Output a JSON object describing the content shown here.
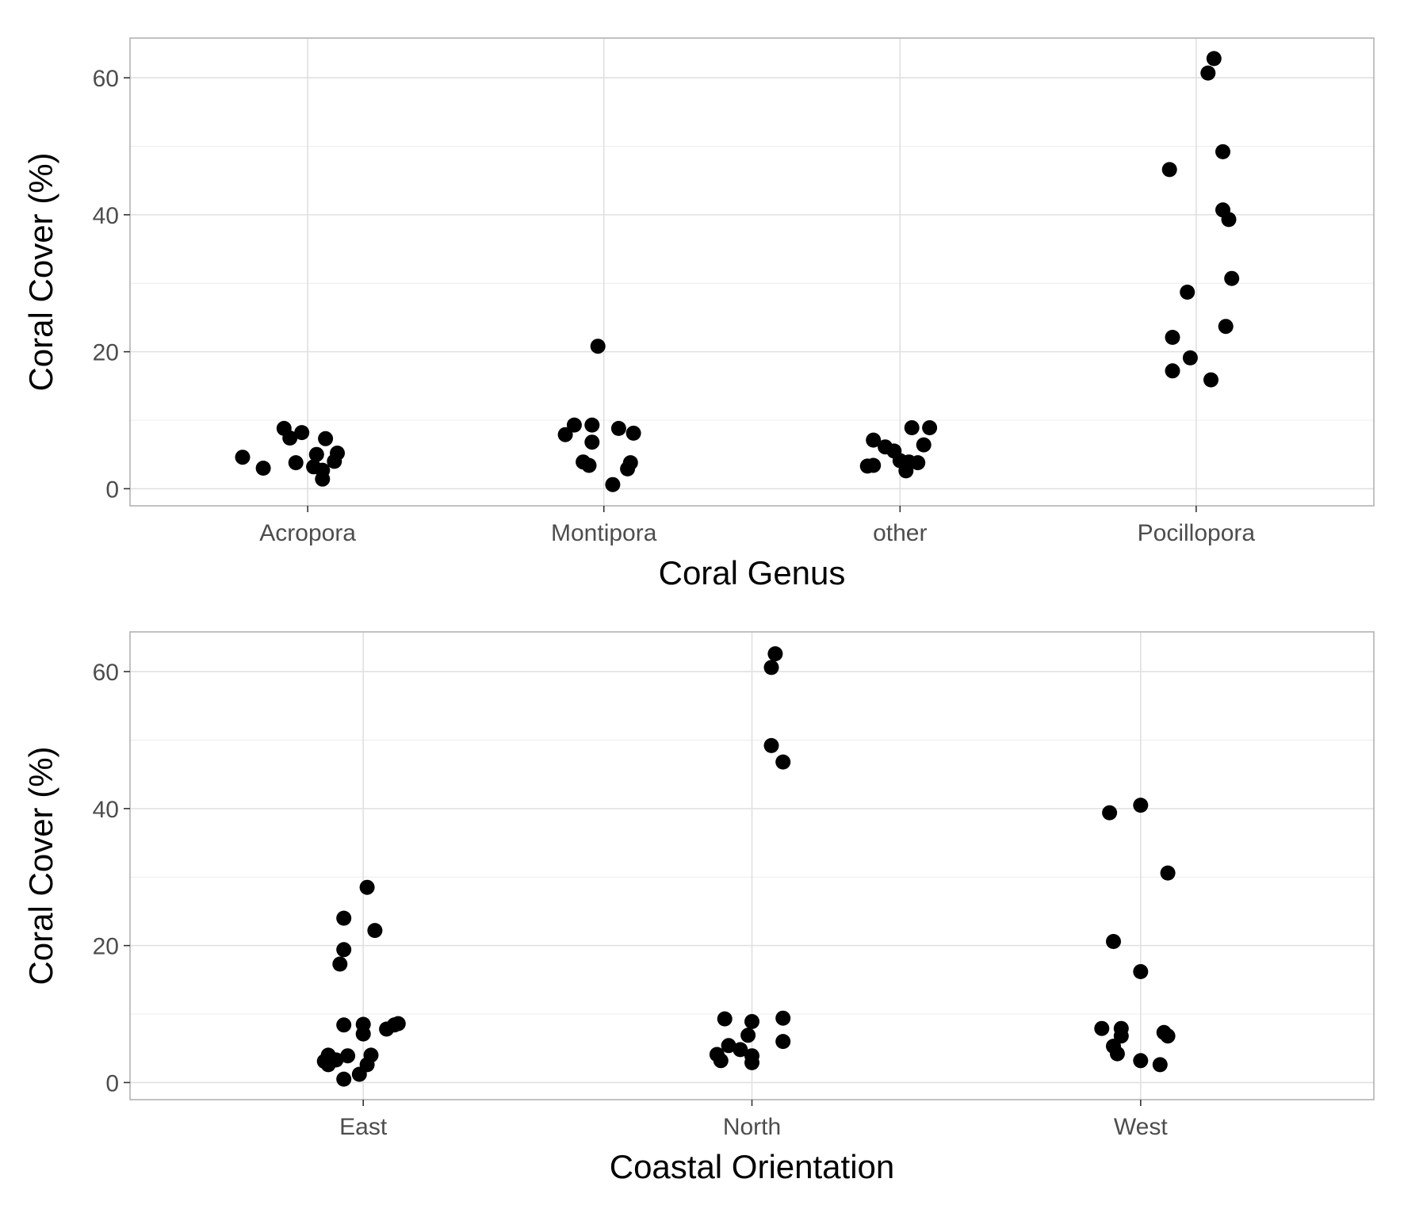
{
  "chart_data": [
    {
      "type": "scatter",
      "title": "",
      "xlabel": "Coral Genus",
      "ylabel": "Coral Cover (%)",
      "categories": [
        "Acropora",
        "Montipora",
        "other",
        "Pocillopora"
      ],
      "y_ticks": [
        0,
        20,
        40,
        60
      ],
      "y_tick_labels": [
        "0",
        "20",
        "40",
        "60"
      ],
      "ylim": [
        -2.5,
        65.8
      ],
      "grid": true,
      "point_color": "#000000",
      "series": [
        {
          "name": "Acropora",
          "points": [
            {
              "x": "Acropora",
              "jitter": -0.08,
              "y": 8.8
            },
            {
              "x": "Acropora",
              "jitter": -0.02,
              "y": 8.2
            },
            {
              "x": "Acropora",
              "jitter": 0.06,
              "y": 7.3
            },
            {
              "x": "Acropora",
              "jitter": -0.22,
              "y": 4.6
            },
            {
              "x": "Acropora",
              "jitter": -0.06,
              "y": 7.4
            },
            {
              "x": "Acropora",
              "jitter": 0.1,
              "y": 5.2
            },
            {
              "x": "Acropora",
              "jitter": 0.03,
              "y": 5.0
            },
            {
              "x": "Acropora",
              "jitter": -0.04,
              "y": 3.8
            },
            {
              "x": "Acropora",
              "jitter": -0.15,
              "y": 3.0
            },
            {
              "x": "Acropora",
              "jitter": 0.02,
              "y": 3.2
            },
            {
              "x": "Acropora",
              "jitter": 0.09,
              "y": 4.0
            },
            {
              "x": "Acropora",
              "jitter": 0.05,
              "y": 2.7
            },
            {
              "x": "Acropora",
              "jitter": 0.05,
              "y": 1.4
            }
          ]
        },
        {
          "name": "Montipora",
          "points": [
            {
              "x": "Montipora",
              "jitter": -0.02,
              "y": 20.8
            },
            {
              "x": "Montipora",
              "jitter": -0.1,
              "y": 9.3
            },
            {
              "x": "Montipora",
              "jitter": -0.04,
              "y": 9.3
            },
            {
              "x": "Montipora",
              "jitter": 0.05,
              "y": 8.8
            },
            {
              "x": "Montipora",
              "jitter": -0.13,
              "y": 7.9
            },
            {
              "x": "Montipora",
              "jitter": 0.1,
              "y": 8.1
            },
            {
              "x": "Montipora",
              "jitter": -0.04,
              "y": 6.8
            },
            {
              "x": "Montipora",
              "jitter": -0.07,
              "y": 3.9
            },
            {
              "x": "Montipora",
              "jitter": -0.05,
              "y": 3.4
            },
            {
              "x": "Montipora",
              "jitter": 0.09,
              "y": 3.8
            },
            {
              "x": "Montipora",
              "jitter": 0.08,
              "y": 2.9
            },
            {
              "x": "Montipora",
              "jitter": 0.03,
              "y": 0.6
            }
          ]
        },
        {
          "name": "other",
          "points": [
            {
              "x": "other",
              "jitter": 0.04,
              "y": 8.9
            },
            {
              "x": "other",
              "jitter": 0.1,
              "y": 8.9
            },
            {
              "x": "other",
              "jitter": -0.09,
              "y": 7.1
            },
            {
              "x": "other",
              "jitter": -0.05,
              "y": 6.1
            },
            {
              "x": "other",
              "jitter": -0.02,
              "y": 5.5
            },
            {
              "x": "other",
              "jitter": 0.08,
              "y": 6.4
            },
            {
              "x": "other",
              "jitter": 0.0,
              "y": 4.1
            },
            {
              "x": "other",
              "jitter": 0.06,
              "y": 3.8
            },
            {
              "x": "other",
              "jitter": -0.11,
              "y": 3.3
            },
            {
              "x": "other",
              "jitter": -0.09,
              "y": 3.4
            },
            {
              "x": "other",
              "jitter": 0.02,
              "y": 2.6
            },
            {
              "x": "other",
              "jitter": 0.03,
              "y": 3.9
            }
          ]
        },
        {
          "name": "Pocillopora",
          "points": [
            {
              "x": "Pocillopora",
              "jitter": 0.06,
              "y": 62.8
            },
            {
              "x": "Pocillopora",
              "jitter": 0.04,
              "y": 60.7
            },
            {
              "x": "Pocillopora",
              "jitter": 0.09,
              "y": 49.2
            },
            {
              "x": "Pocillopora",
              "jitter": -0.09,
              "y": 46.6
            },
            {
              "x": "Pocillopora",
              "jitter": 0.09,
              "y": 40.7
            },
            {
              "x": "Pocillopora",
              "jitter": 0.11,
              "y": 39.3
            },
            {
              "x": "Pocillopora",
              "jitter": 0.12,
              "y": 30.7
            },
            {
              "x": "Pocillopora",
              "jitter": -0.03,
              "y": 28.7
            },
            {
              "x": "Pocillopora",
              "jitter": 0.1,
              "y": 23.7
            },
            {
              "x": "Pocillopora",
              "jitter": -0.08,
              "y": 22.1
            },
            {
              "x": "Pocillopora",
              "jitter": -0.02,
              "y": 19.1
            },
            {
              "x": "Pocillopora",
              "jitter": -0.08,
              "y": 17.2
            },
            {
              "x": "Pocillopora",
              "jitter": 0.05,
              "y": 15.9
            }
          ]
        }
      ]
    },
    {
      "type": "scatter",
      "title": "",
      "xlabel": "Coastal Orientation",
      "ylabel": "Coral Cover (%)",
      "categories": [
        "East",
        "North",
        "West"
      ],
      "y_ticks": [
        0,
        20,
        40,
        60
      ],
      "y_tick_labels": [
        "0",
        "20",
        "40",
        "60"
      ],
      "ylim": [
        -2.5,
        65.8
      ],
      "grid": true,
      "point_color": "#000000",
      "series": [
        {
          "name": "East",
          "points": [
            {
              "x": "East",
              "jitter": 0.01,
              "y": 28.5
            },
            {
              "x": "East",
              "jitter": -0.05,
              "y": 24.0
            },
            {
              "x": "East",
              "jitter": 0.03,
              "y": 22.2
            },
            {
              "x": "East",
              "jitter": -0.05,
              "y": 19.4
            },
            {
              "x": "East",
              "jitter": -0.06,
              "y": 17.3
            },
            {
              "x": "East",
              "jitter": -0.05,
              "y": 8.4
            },
            {
              "x": "East",
              "jitter": 0.0,
              "y": 8.5
            },
            {
              "x": "East",
              "jitter": 0.0,
              "y": 7.1
            },
            {
              "x": "East",
              "jitter": 0.06,
              "y": 7.8
            },
            {
              "x": "East",
              "jitter": 0.08,
              "y": 8.4
            },
            {
              "x": "East",
              "jitter": 0.09,
              "y": 8.6
            },
            {
              "x": "East",
              "jitter": -0.09,
              "y": 4.0
            },
            {
              "x": "East",
              "jitter": -0.04,
              "y": 3.9
            },
            {
              "x": "East",
              "jitter": 0.02,
              "y": 4.0
            },
            {
              "x": "East",
              "jitter": -0.1,
              "y": 3.1
            },
            {
              "x": "East",
              "jitter": -0.07,
              "y": 3.3
            },
            {
              "x": "East",
              "jitter": -0.09,
              "y": 2.6
            },
            {
              "x": "East",
              "jitter": 0.01,
              "y": 2.6
            },
            {
              "x": "East",
              "jitter": -0.01,
              "y": 1.2
            },
            {
              "x": "East",
              "jitter": -0.05,
              "y": 0.5
            }
          ]
        },
        {
          "name": "North",
          "points": [
            {
              "x": "North",
              "jitter": 0.06,
              "y": 62.6
            },
            {
              "x": "North",
              "jitter": 0.05,
              "y": 60.6
            },
            {
              "x": "North",
              "jitter": 0.05,
              "y": 49.2
            },
            {
              "x": "North",
              "jitter": 0.08,
              "y": 46.8
            },
            {
              "x": "North",
              "jitter": -0.07,
              "y": 9.3
            },
            {
              "x": "North",
              "jitter": 0.0,
              "y": 8.9
            },
            {
              "x": "North",
              "jitter": 0.08,
              "y": 9.4
            },
            {
              "x": "North",
              "jitter": -0.01,
              "y": 6.9
            },
            {
              "x": "North",
              "jitter": -0.06,
              "y": 5.4
            },
            {
              "x": "North",
              "jitter": -0.03,
              "y": 4.8
            },
            {
              "x": "North",
              "jitter": -0.09,
              "y": 4.1
            },
            {
              "x": "North",
              "jitter": -0.08,
              "y": 3.2
            },
            {
              "x": "North",
              "jitter": 0.0,
              "y": 3.9
            },
            {
              "x": "North",
              "jitter": 0.0,
              "y": 2.9
            },
            {
              "x": "North",
              "jitter": 0.08,
              "y": 6.0
            }
          ]
        },
        {
          "name": "West",
          "points": [
            {
              "x": "West",
              "jitter": 0.0,
              "y": 40.5
            },
            {
              "x": "West",
              "jitter": -0.08,
              "y": 39.4
            },
            {
              "x": "West",
              "jitter": 0.07,
              "y": 30.6
            },
            {
              "x": "West",
              "jitter": -0.07,
              "y": 20.6
            },
            {
              "x": "West",
              "jitter": 0.0,
              "y": 16.2
            },
            {
              "x": "West",
              "jitter": -0.1,
              "y": 7.9
            },
            {
              "x": "West",
              "jitter": -0.05,
              "y": 7.9
            },
            {
              "x": "West",
              "jitter": 0.06,
              "y": 7.3
            },
            {
              "x": "West",
              "jitter": 0.07,
              "y": 6.8
            },
            {
              "x": "West",
              "jitter": -0.05,
              "y": 6.8
            },
            {
              "x": "West",
              "jitter": -0.07,
              "y": 5.3
            },
            {
              "x": "West",
              "jitter": -0.06,
              "y": 4.2
            },
            {
              "x": "West",
              "jitter": 0.0,
              "y": 3.2
            },
            {
              "x": "West",
              "jitter": 0.05,
              "y": 2.6
            }
          ]
        }
      ]
    }
  ]
}
